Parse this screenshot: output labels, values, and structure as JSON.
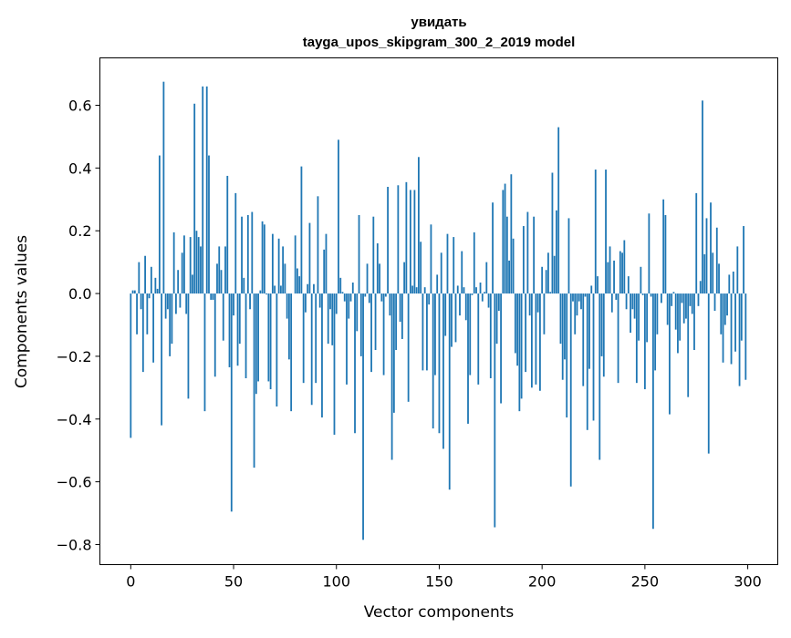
{
  "chart_data": {
    "type": "bar",
    "title_line1": "увидать",
    "title_line2": "tayga_upos_skipgram_300_2_2019 model",
    "xlabel": "Vector components",
    "ylabel": "Components values",
    "xlim": [
      -15,
      314.6
    ],
    "ylim": [
      -0.864,
      0.751
    ],
    "xticks": [
      0,
      50,
      100,
      150,
      200,
      250,
      300
    ],
    "xtick_labels": [
      "0",
      "50",
      "100",
      "150",
      "200",
      "250",
      "300"
    ],
    "yticks": [
      0.6,
      0.4,
      0.2,
      0.0,
      -0.2,
      -0.4,
      -0.6,
      -0.8
    ],
    "ytick_labels": [
      "0.6",
      "0.4",
      "0.2",
      "0.0",
      "−0.2",
      "−0.4",
      "−0.6",
      "−0.8"
    ],
    "grid": false,
    "bar_color": "#1f77b4",
    "values": [
      -0.46,
      0.01,
      0.01,
      -0.13,
      0.1,
      -0.05,
      -0.25,
      0.12,
      -0.13,
      -0.015,
      0.085,
      -0.22,
      0.05,
      0.015,
      0.44,
      -0.42,
      0.675,
      -0.08,
      -0.05,
      -0.2,
      -0.16,
      0.195,
      -0.065,
      0.075,
      -0.045,
      0.13,
      0.185,
      -0.065,
      -0.335,
      0.18,
      0.06,
      0.605,
      0.2,
      0.18,
      0.15,
      0.66,
      -0.375,
      0.66,
      0.44,
      -0.02,
      -0.02,
      -0.265,
      0.095,
      0.15,
      0.075,
      -0.15,
      0.15,
      0.375,
      -0.235,
      -0.695,
      -0.07,
      0.32,
      -0.23,
      -0.16,
      0.245,
      0.05,
      -0.27,
      0.25,
      -0.05,
      0.26,
      -0.555,
      -0.32,
      -0.28,
      0.01,
      0.23,
      0.22,
      -0.003,
      -0.28,
      -0.305,
      0.19,
      0.025,
      -0.36,
      0.175,
      0.025,
      0.15,
      0.095,
      -0.08,
      -0.21,
      -0.375,
      0.0,
      0.185,
      0.08,
      0.055,
      0.405,
      -0.285,
      -0.06,
      0.03,
      0.225,
      -0.355,
      0.03,
      -0.285,
      0.31,
      -0.045,
      -0.395,
      0.14,
      0.19,
      -0.16,
      -0.05,
      -0.165,
      -0.45,
      -0.065,
      0.49,
      0.05,
      0.005,
      -0.025,
      -0.29,
      -0.08,
      -0.025,
      0.035,
      -0.445,
      -0.12,
      0.25,
      -0.2,
      -0.785,
      -0.01,
      0.095,
      -0.03,
      -0.25,
      0.245,
      -0.18,
      0.16,
      0.095,
      -0.025,
      -0.26,
      -0.01,
      0.34,
      -0.07,
      -0.53,
      -0.38,
      -0.18,
      0.345,
      -0.09,
      -0.145,
      0.1,
      0.355,
      -0.345,
      0.33,
      0.025,
      0.33,
      0.02,
      0.435,
      0.165,
      -0.245,
      0.02,
      -0.245,
      -0.035,
      0.22,
      -0.43,
      -0.26,
      0.06,
      -0.445,
      0.13,
      -0.495,
      -0.135,
      0.19,
      -0.625,
      -0.17,
      0.18,
      -0.155,
      0.025,
      -0.07,
      0.135,
      0.02,
      -0.085,
      -0.415,
      -0.26,
      -0.005,
      0.195,
      0.02,
      -0.29,
      0.035,
      -0.025,
      0.005,
      0.1,
      -0.045,
      -0.27,
      0.29,
      -0.745,
      -0.16,
      -0.055,
      -0.35,
      0.33,
      0.35,
      0.245,
      0.105,
      0.38,
      0.175,
      -0.19,
      -0.23,
      -0.375,
      -0.335,
      0.215,
      -0.25,
      0.26,
      -0.07,
      -0.3,
      0.245,
      -0.29,
      -0.06,
      -0.31,
      0.085,
      -0.13,
      0.075,
      0.13,
      0.005,
      0.385,
      0.12,
      0.265,
      0.53,
      -0.16,
      -0.275,
      -0.21,
      -0.395,
      0.24,
      -0.615,
      -0.025,
      -0.13,
      -0.07,
      -0.025,
      -0.05,
      -0.295,
      -0.01,
      -0.435,
      -0.24,
      0.025,
      -0.405,
      0.395,
      0.055,
      -0.53,
      -0.2,
      -0.265,
      0.395,
      0.1,
      0.15,
      -0.06,
      0.105,
      -0.02,
      -0.285,
      0.135,
      0.13,
      0.17,
      -0.05,
      0.055,
      -0.125,
      -0.05,
      -0.08,
      -0.285,
      -0.15,
      0.085,
      -0.005,
      -0.305,
      -0.155,
      0.255,
      -0.01,
      -0.75,
      -0.245,
      -0.13,
      0.0,
      -0.03,
      0.3,
      0.25,
      -0.1,
      -0.385,
      -0.04,
      0.005,
      -0.115,
      -0.19,
      -0.15,
      -0.03,
      -0.095,
      -0.08,
      -0.33,
      -0.04,
      -0.065,
      -0.18,
      0.32,
      -0.04,
      0.04,
      0.615,
      0.125,
      0.24,
      -0.51,
      0.29,
      0.13,
      -0.055,
      0.21,
      0.095,
      -0.13,
      -0.22,
      -0.1,
      -0.07,
      0.06,
      -0.225,
      0.07,
      -0.185,
      0.15,
      -0.295,
      -0.15,
      0.215,
      -0.275
    ]
  }
}
